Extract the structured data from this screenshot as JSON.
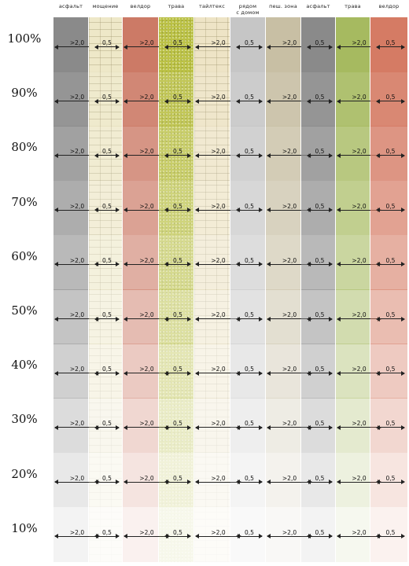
{
  "columns": [
    {
      "label": "асфальт",
      "color": "#8a8a8a",
      "pattern": "plain",
      "dim": ">2,0"
    },
    {
      "label": "мощение",
      "color": "#eee8c8",
      "pattern": "brick",
      "dim": "0,5"
    },
    {
      "label": "велдор",
      "color": "#cc7a66",
      "pattern": "plain",
      "dim": ">2,0"
    },
    {
      "label": "трава",
      "color": "#bcc246",
      "pattern": "grain",
      "dim": "0,5"
    },
    {
      "label": "тайлтекс",
      "color": "#eee4c6",
      "pattern": "brick",
      "dim": ">2,0"
    },
    {
      "label": "рядом\nс домом",
      "color": "#c6c6c6",
      "pattern": "plain",
      "dim": "0,5"
    },
    {
      "label": "пеш. зона",
      "color": "#c8bfa4",
      "pattern": "plain",
      "dim": ">2,0"
    },
    {
      "label": "асфальт",
      "color": "#8a8a8a",
      "pattern": "plain",
      "dim": "0,5"
    },
    {
      "label": "трава",
      "color": "#a6ba60",
      "pattern": "plain",
      "dim": ">2,0"
    },
    {
      "label": "велдор",
      "color": "#d57b64",
      "pattern": "plain",
      "dim": "0,5"
    }
  ],
  "rows": [
    {
      "label": "100%",
      "opacity": 1.0
    },
    {
      "label": "90%",
      "opacity": 0.9
    },
    {
      "label": "80%",
      "opacity": 0.8
    },
    {
      "label": "70%",
      "opacity": 0.7
    },
    {
      "label": "60%",
      "opacity": 0.6
    },
    {
      "label": "50%",
      "opacity": 0.5
    },
    {
      "label": "40%",
      "opacity": 0.4
    },
    {
      "label": "30%",
      "opacity": 0.3
    },
    {
      "label": "20%",
      "opacity": 0.2
    },
    {
      "label": "10%",
      "opacity": 0.1
    }
  ]
}
